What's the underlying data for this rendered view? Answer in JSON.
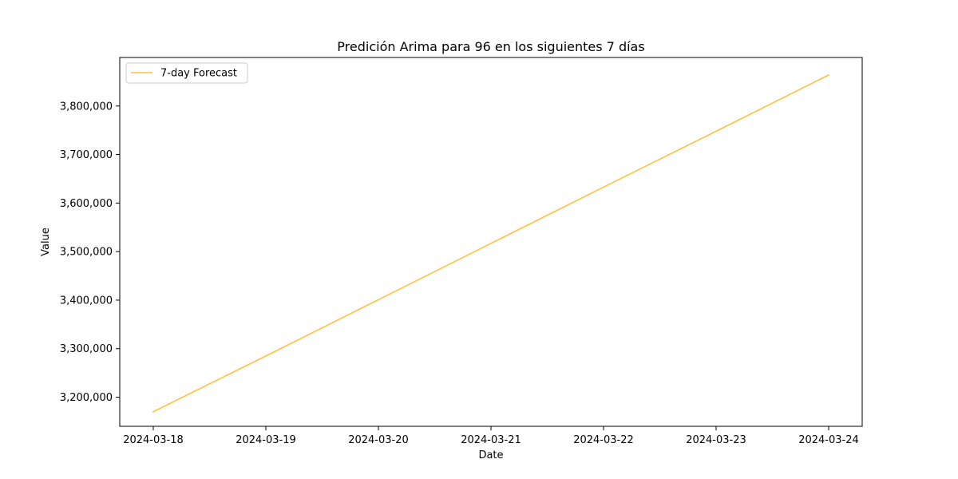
{
  "chart_data": {
    "type": "line",
    "title": "Predición Arima para 96 en los siguientes 7 días",
    "xlabel": "Date",
    "ylabel": "Value",
    "x": [
      "2024-03-18",
      "2024-03-19",
      "2024-03-20",
      "2024-03-21",
      "2024-03-22",
      "2024-03-23",
      "2024-03-24"
    ],
    "xtick_labels": [
      "2024-03-18",
      "2024-03-19",
      "2024-03-20",
      "2024-03-21",
      "2024-03-22",
      "2024-03-23",
      "2024-03-24"
    ],
    "series": [
      {
        "name": "7-day Forecast",
        "color": "#ffbf40",
        "values": [
          3170000,
          3285000,
          3401000,
          3517000,
          3633000,
          3748000,
          3864000
        ]
      }
    ],
    "ylim": [
      3140000,
      3900000
    ],
    "yticks": [
      3200000,
      3300000,
      3400000,
      3500000,
      3600000,
      3700000,
      3800000
    ],
    "ytick_labels": [
      "3,200,000",
      "3,300,000",
      "3,400,000",
      "3,500,000",
      "3,600,000",
      "3,700,000",
      "3,800,000"
    ],
    "grid": false,
    "legend_position": "top-left"
  }
}
